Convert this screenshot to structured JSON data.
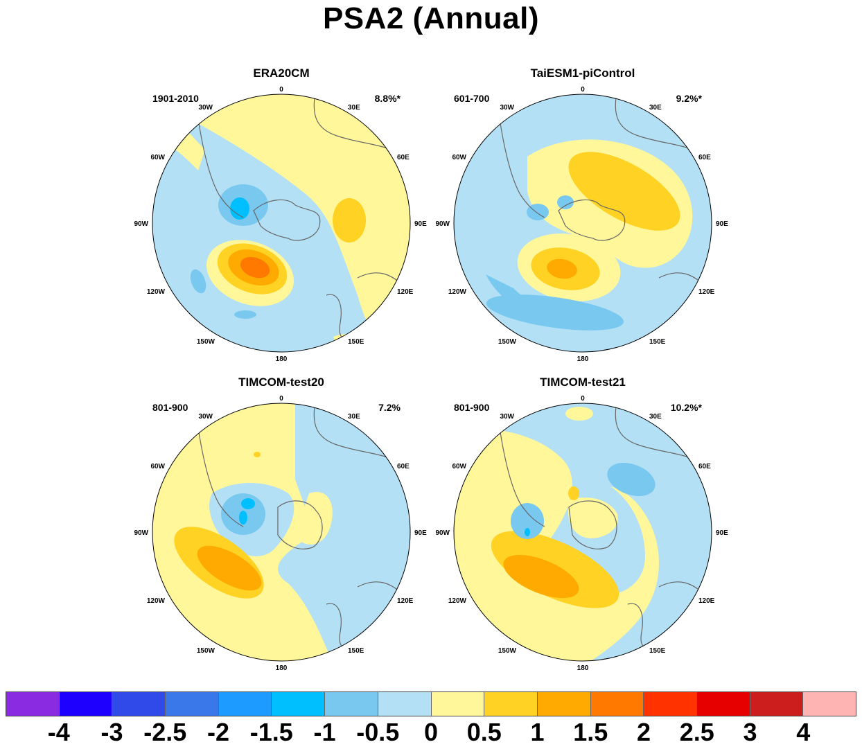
{
  "title": "PSA2 (Annual)",
  "panels": [
    {
      "title": "ERA20CM",
      "period": "1901-2010",
      "variance": "8.8%*"
    },
    {
      "title": "TaiESM1-piControl",
      "period": "601-700",
      "variance": "9.2%*"
    },
    {
      "title": "TIMCOM-test20",
      "period": "801-900",
      "variance": "7.2%"
    },
    {
      "title": "TIMCOM-test21",
      "period": "801-900",
      "variance": "10.2%*"
    }
  ],
  "lon_labels": {
    "top": "0",
    "bottom": "180",
    "30W": "30W",
    "30E": "30E",
    "60W": "60W",
    "60E": "60E",
    "90W": "90W",
    "90E": "90E",
    "120W": "120W",
    "120E": "120E",
    "150W": "150W",
    "150E": "150E"
  },
  "colorbar": {
    "colors": [
      "#8a2be2",
      "#1e00ff",
      "#2f4ae8",
      "#3a78ea",
      "#1e9bff",
      "#00bfff",
      "#78c8f0",
      "#b4e0f5",
      "#fff79a",
      "#ffd224",
      "#ffaa00",
      "#ff7800",
      "#ff3200",
      "#e60000",
      "#cd1e1e",
      "#ffb4b4"
    ],
    "labels": [
      "-4",
      "-3",
      "-2.5",
      "-2",
      "-1.5",
      "-1",
      "-0.5",
      "0",
      "0.5",
      "1",
      "1.5",
      "2",
      "2.5",
      "3",
      "4"
    ]
  }
}
